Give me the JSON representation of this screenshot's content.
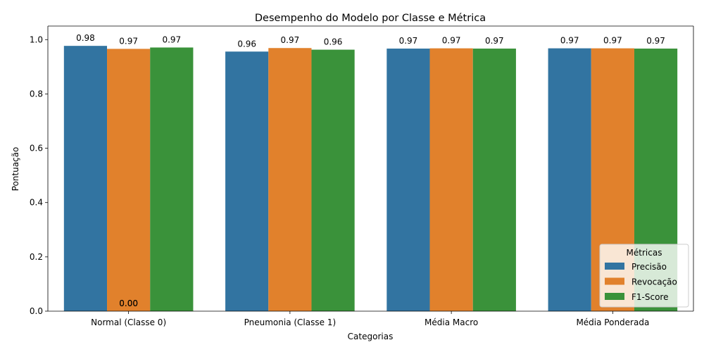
{
  "chart_data": {
    "type": "bar",
    "title": "Desempenho do Modelo por Classe e Métrica",
    "xlabel": "Categorias",
    "ylabel": "Pontuação",
    "categories": [
      "Normal (Classe 0)",
      "Pneumonia (Classe 1)",
      "Média Macro",
      "Média Ponderada"
    ],
    "series": [
      {
        "name": "Precisão",
        "color": "#3274a1",
        "values": [
          0.977,
          0.956,
          0.967,
          0.968
        ],
        "labels": [
          "0.98",
          "0.96",
          "0.97",
          "0.97"
        ]
      },
      {
        "name": "Revocação",
        "color": "#e1812c",
        "values": [
          0.966,
          0.969,
          0.968,
          0.968
        ],
        "labels": [
          "0.97",
          "0.97",
          "0.97",
          "0.97"
        ]
      },
      {
        "name": "F1-Score",
        "color": "#3a923a",
        "values": [
          0.971,
          0.963,
          0.967,
          0.967
        ],
        "labels": [
          "0.97",
          "0.96",
          "0.97",
          "0.97"
        ]
      }
    ],
    "extra_annotations": [
      "0.00",
      "0.00"
    ],
    "ylim": [
      0,
      1.05
    ],
    "yticks": [
      "0.0",
      "0.2",
      "0.4",
      "0.6",
      "0.8",
      "1.0"
    ],
    "grid": false,
    "legend": {
      "title": "Métricas",
      "placement": "lower-right"
    }
  }
}
